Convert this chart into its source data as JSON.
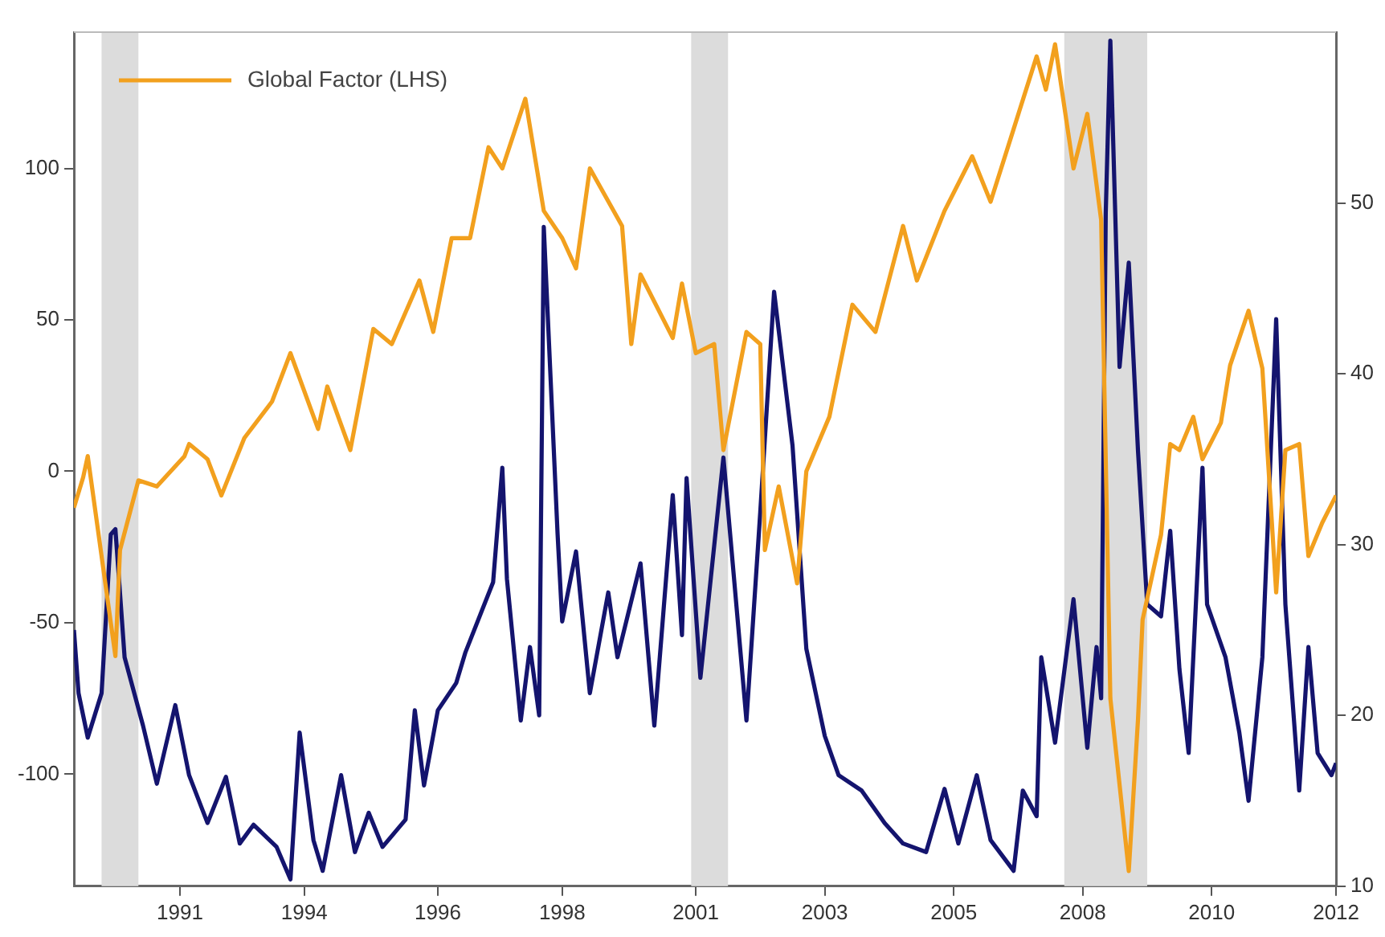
{
  "chart_data": {
    "type": "line",
    "legend": "top left",
    "grid": false,
    "xlim": [
      "1990-01",
      "2012-11"
    ],
    "xticks": [
      {
        "value": "1991-12",
        "label": "1991"
      },
      {
        "value": "1994-03",
        "label": "1994"
      },
      {
        "value": "1996-08",
        "label": "1996"
      },
      {
        "value": "1998-11",
        "label": "1998"
      },
      {
        "value": "2001-04",
        "label": "2001"
      },
      {
        "value": "2003-08",
        "label": "2003"
      },
      {
        "value": "2005-12",
        "label": "2005"
      },
      {
        "value": "2008-04",
        "label": "2008"
      },
      {
        "value": "2010-08",
        "label": "2010"
      },
      {
        "value": "2012-11",
        "label": "2012"
      }
    ],
    "ylim": [
      -137,
      145
    ],
    "yticks": [
      -100,
      -50,
      0,
      50,
      100
    ],
    "y2lim": [
      10,
      60
    ],
    "y2ticks": [
      10,
      20,
      30,
      40,
      50
    ],
    "bands": [
      {
        "axis": "x",
        "from": "1990-07",
        "to": "1991-03",
        "color": "#dcdcdc"
      },
      {
        "axis": "x",
        "from": "2001-03",
        "to": "2001-11",
        "color": "#dcdcdc"
      },
      {
        "axis": "x",
        "from": "2007-12",
        "to": "2009-06",
        "color": "#dcdcdc"
      }
    ],
    "series": [
      {
        "color": "#14146e",
        "axis": "y2",
        "x": [
          "1990-01",
          "1990-02",
          "1990-04",
          "1990-07",
          "1990-09",
          "1990-10",
          "1990-12",
          "1991-04",
          "1991-07",
          "1991-11",
          "1992-02",
          "1992-06",
          "1992-10",
          "1993-01",
          "1993-04",
          "1993-09",
          "1993-12",
          "1994-02",
          "1994-05",
          "1994-07",
          "1994-11",
          "1995-02",
          "1995-05",
          "1995-08",
          "1996-01",
          "1996-03",
          "1996-05",
          "1996-08",
          "1996-12",
          "1997-02",
          "1997-08",
          "1997-10",
          "1997-11",
          "1998-02",
          "1998-04",
          "1998-06",
          "1998-07",
          "1998-10",
          "1998-11",
          "1999-02",
          "1999-05",
          "1999-09",
          "1999-11",
          "2000-04",
          "2000-07",
          "2000-11",
          "2001-01",
          "2001-02",
          "2001-05",
          "2001-10",
          "2002-02",
          "2002-03",
          "2002-06",
          "2002-09",
          "2003-01",
          "2003-04",
          "2003-08",
          "2003-11",
          "2004-04",
          "2004-09",
          "2005-01",
          "2005-06",
          "2005-10",
          "2006-01",
          "2006-05",
          "2006-08",
          "2007-01",
          "2007-03",
          "2007-06",
          "2007-07",
          "2007-10",
          "2008-02",
          "2008-05",
          "2008-07",
          "2008-08",
          "2008-09",
          "2008-10",
          "2008-12",
          "2009-02",
          "2009-04",
          "2009-06",
          "2009-09",
          "2009-11",
          "2010-01",
          "2010-03",
          "2010-06",
          "2010-07",
          "2010-11",
          "2011-02",
          "2011-04",
          "2011-07",
          "2011-10",
          "2011-12",
          "2012-03",
          "2012-05",
          "2012-07",
          "2012-10",
          "2012-11"
        ],
        "values": [
          25.0,
          21.3,
          18.7,
          21.3,
          30.6,
          30.9,
          23.4,
          19.4,
          16.0,
          20.6,
          16.5,
          13.7,
          16.4,
          12.5,
          13.6,
          12.3,
          10.4,
          19.0,
          12.7,
          10.9,
          16.5,
          12.0,
          14.3,
          12.3,
          13.9,
          20.3,
          15.9,
          20.3,
          21.9,
          23.7,
          27.8,
          34.5,
          28.0,
          19.7,
          24.0,
          20.0,
          48.6,
          30.6,
          25.5,
          29.6,
          21.3,
          27.2,
          23.4,
          28.9,
          19.4,
          32.9,
          24.7,
          33.9,
          22.2,
          35.1,
          22.8,
          19.7,
          31.9,
          44.8,
          35.8,
          23.9,
          18.8,
          16.5,
          15.6,
          13.7,
          12.5,
          12.0,
          15.7,
          12.5,
          16.5,
          12.7,
          10.9,
          15.6,
          14.1,
          23.4,
          18.4,
          26.8,
          18.1,
          24.0,
          21.0,
          49.4,
          59.5,
          40.4,
          46.5,
          35.5,
          26.5,
          25.8,
          30.8,
          22.7,
          17.8,
          34.5,
          26.5,
          23.4,
          19.0,
          15.0,
          23.4,
          43.2,
          26.5,
          15.6,
          24.0,
          17.8,
          16.5,
          17.2
        ]
      },
      {
        "name": "Global Factor (LHS)",
        "color": "#f2a01e",
        "x": [
          "1990-01",
          "1990-03",
          "1990-04",
          "1990-06",
          "1990-10",
          "1990-11",
          "1991-03",
          "1991-07",
          "1992-01",
          "1992-02",
          "1992-06",
          "1992-09",
          "1993-02",
          "1993-08",
          "1993-12",
          "1994-06",
          "1994-08",
          "1995-01",
          "1995-06",
          "1995-10",
          "1996-04",
          "1996-07",
          "1996-11",
          "1997-03",
          "1997-07",
          "1997-10",
          "1998-03",
          "1998-07",
          "1998-11",
          "1999-02",
          "1999-05",
          "1999-12",
          "2000-02",
          "2000-04",
          "2000-11",
          "2001-01",
          "2001-04",
          "2001-08",
          "2001-10",
          "2002-03",
          "2002-06",
          "2002-07",
          "2002-10",
          "2003-02",
          "2003-04",
          "2003-09",
          "2004-02",
          "2004-07",
          "2005-01",
          "2005-04",
          "2005-10",
          "2006-04",
          "2006-08",
          "2007-01",
          "2007-06",
          "2007-08",
          "2007-10",
          "2008-02",
          "2008-05",
          "2008-08",
          "2008-10",
          "2009-02",
          "2009-04",
          "2009-05",
          "2009-09",
          "2009-11",
          "2010-01",
          "2010-04",
          "2010-06",
          "2010-10",
          "2010-12",
          "2011-04",
          "2011-07",
          "2011-10",
          "2011-12",
          "2012-03",
          "2012-05",
          "2012-08",
          "2012-11"
        ],
        "values": [
          -12,
          -2,
          5,
          -17,
          -61,
          -26,
          -3,
          -5,
          5,
          9,
          4,
          -8,
          11,
          23,
          39,
          14,
          28,
          7,
          47,
          42,
          63,
          46,
          77,
          77,
          107,
          100,
          123,
          86,
          77,
          67,
          100,
          81,
          42,
          65,
          44,
          62,
          39,
          42,
          7,
          46,
          42,
          -26,
          -5,
          -37,
          0,
          18,
          55,
          46,
          81,
          63,
          86,
          104,
          89,
          113,
          137,
          126,
          141,
          100,
          118,
          83,
          -75,
          -132,
          -82,
          -49,
          -21,
          9,
          7,
          18,
          4,
          16,
          35,
          53,
          34,
          -40,
          7,
          9,
          -28,
          -17,
          -8
        ]
      }
    ]
  }
}
